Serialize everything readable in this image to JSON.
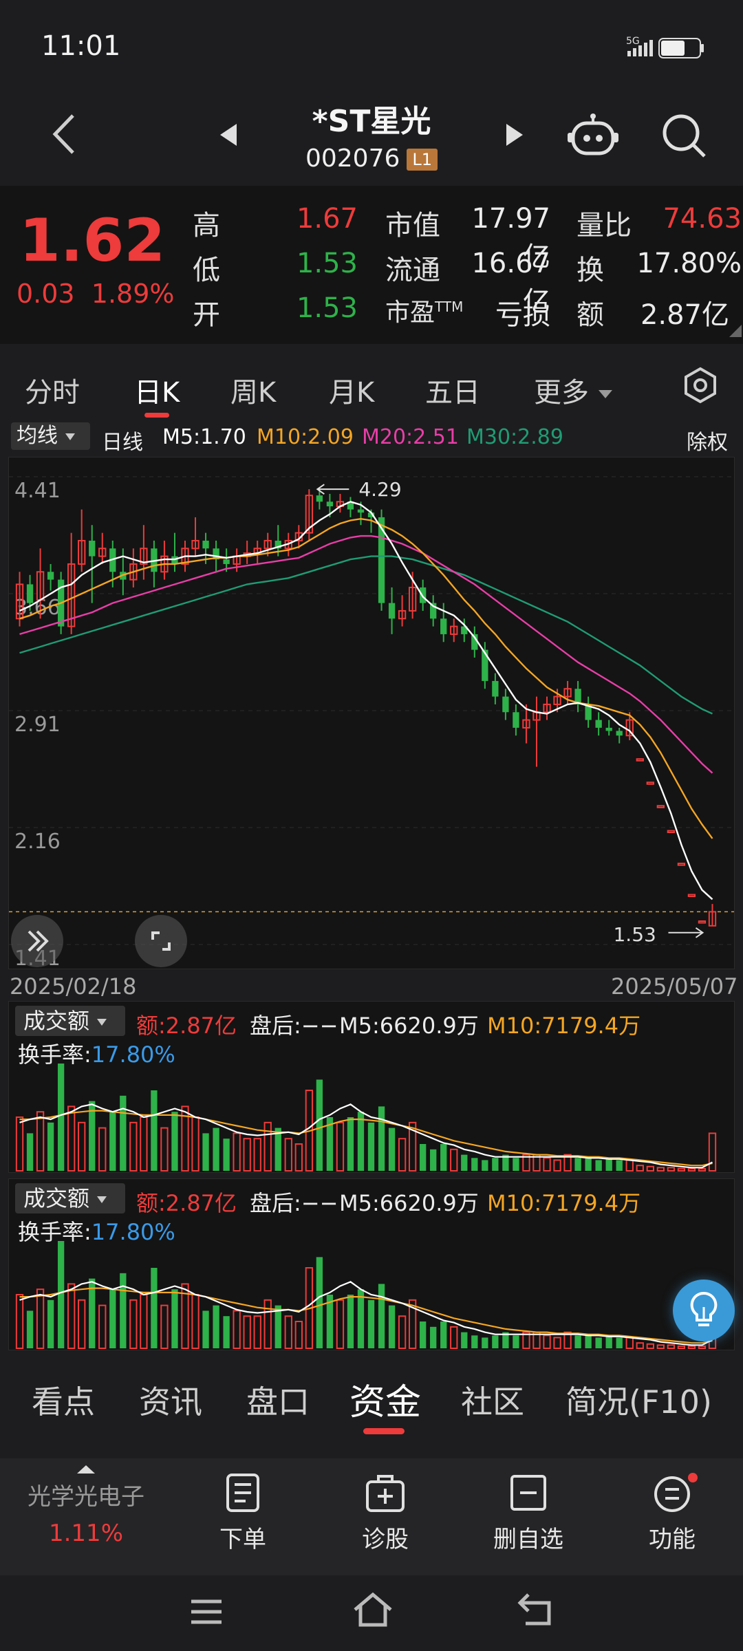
{
  "status": {
    "time": "11:01",
    "network": "5G"
  },
  "header": {
    "stock_name": "*ST星光",
    "stock_code": "002076",
    "level_badge": "L1"
  },
  "quote": {
    "price": "1.62",
    "change": "0.03",
    "change_pct": "1.89%",
    "rows": [
      {
        "label": "高",
        "value": "1.67",
        "color": "#ee3b3b"
      },
      {
        "label": "低",
        "value": "1.53",
        "color": "#2eb24a"
      },
      {
        "label": "开",
        "value": "1.53",
        "color": "#2eb24a"
      }
    ],
    "mid": [
      {
        "label": "市值",
        "value": "17.97亿"
      },
      {
        "label": "流通",
        "value": "16.67亿"
      },
      {
        "label": "市盈TTM",
        "value": "亏损"
      }
    ],
    "right": [
      {
        "label": "量比",
        "value": "74.63",
        "color": "#ee3b3b"
      },
      {
        "label": "换",
        "value": "17.80%",
        "color": "#ececec"
      },
      {
        "label": "额",
        "value": "2.87亿",
        "color": "#ececec"
      }
    ]
  },
  "period_tabs": [
    "分时",
    "日K",
    "周K",
    "月K",
    "五日",
    "更多"
  ],
  "period_active": "日K",
  "ma_legend": {
    "selector": "均线",
    "period": "日线",
    "m5": "M5:1.70",
    "m10": "M10:2.09",
    "m20": "M20:2.51",
    "m30": "M30:2.89",
    "adjust": "除权",
    "colors": {
      "m5": "#ffffff",
      "m10": "#f5a623",
      "m20": "#e83ea7",
      "m30": "#1f9c74"
    }
  },
  "chart_data": {
    "type": "candlestick",
    "y_ticks": [
      "4.41",
      "3.66",
      "2.91",
      "2.16",
      "1.41"
    ],
    "ylim": [
      1.41,
      4.41
    ],
    "high_label": "4.29",
    "low_label": "1.53",
    "start_date": "2025/02/18",
    "end_date": "2025/05/07",
    "candles": [
      [
        3.5,
        3.72,
        3.45,
        3.8
      ],
      [
        3.72,
        3.6,
        3.55,
        3.78
      ],
      [
        3.62,
        3.8,
        3.5,
        3.95
      ],
      [
        3.8,
        3.75,
        3.68,
        3.85
      ],
      [
        3.75,
        3.45,
        3.4,
        3.8
      ],
      [
        3.45,
        3.85,
        3.4,
        4.05
      ],
      [
        3.85,
        4.0,
        3.8,
        4.2
      ],
      [
        4.0,
        3.9,
        3.6,
        4.1
      ],
      [
        3.9,
        3.95,
        3.85,
        4.05
      ],
      [
        3.95,
        3.8,
        3.7,
        4.0
      ],
      [
        3.8,
        3.75,
        3.65,
        3.95
      ],
      [
        3.75,
        3.85,
        3.7,
        3.95
      ],
      [
        3.85,
        3.95,
        3.75,
        4.1
      ],
      [
        3.95,
        3.8,
        3.7,
        4.0
      ],
      [
        3.8,
        3.9,
        3.75,
        4.0
      ],
      [
        3.9,
        3.85,
        3.8,
        4.05
      ],
      [
        3.85,
        3.95,
        3.8,
        4.0
      ],
      [
        3.95,
        4.0,
        3.9,
        4.15
      ],
      [
        4.0,
        3.95,
        3.85,
        4.05
      ],
      [
        3.95,
        3.88,
        3.8,
        4.0
      ],
      [
        3.88,
        3.85,
        3.8,
        3.95
      ],
      [
        3.85,
        3.9,
        3.8,
        3.95
      ],
      [
        3.9,
        3.92,
        3.85,
        4.0
      ],
      [
        3.92,
        3.95,
        3.85,
        4.0
      ],
      [
        3.95,
        4.0,
        3.9,
        4.05
      ],
      [
        4.0,
        3.95,
        3.9,
        4.1
      ],
      [
        3.95,
        4.0,
        3.9,
        4.05
      ],
      [
        4.0,
        4.05,
        3.95,
        4.1
      ],
      [
        4.05,
        4.29,
        4.0,
        4.33
      ],
      [
        4.29,
        4.25,
        4.2,
        4.33
      ],
      [
        4.25,
        4.22,
        4.15,
        4.3
      ],
      [
        4.22,
        4.25,
        4.18,
        4.3
      ],
      [
        4.25,
        4.2,
        4.15,
        4.28
      ],
      [
        4.2,
        4.18,
        4.1,
        4.25
      ],
      [
        4.18,
        4.15,
        4.05,
        4.2
      ],
      [
        4.15,
        3.6,
        3.55,
        4.2
      ],
      [
        3.6,
        3.5,
        3.4,
        3.7
      ],
      [
        3.5,
        3.55,
        3.45,
        3.65
      ],
      [
        3.55,
        3.7,
        3.5,
        3.8
      ],
      [
        3.7,
        3.6,
        3.55,
        3.75
      ],
      [
        3.6,
        3.5,
        3.45,
        3.65
      ],
      [
        3.5,
        3.4,
        3.35,
        3.6
      ],
      [
        3.4,
        3.45,
        3.35,
        3.5
      ],
      [
        3.45,
        3.4,
        3.35,
        3.5
      ],
      [
        3.4,
        3.3,
        3.25,
        3.45
      ],
      [
        3.3,
        3.1,
        3.05,
        3.35
      ],
      [
        3.1,
        3.0,
        2.95,
        3.15
      ],
      [
        3.0,
        2.9,
        2.85,
        3.05
      ],
      [
        2.9,
        2.8,
        2.75,
        2.95
      ],
      [
        2.8,
        2.85,
        2.7,
        2.95
      ],
      [
        2.85,
        2.9,
        2.55,
        3.0
      ],
      [
        2.9,
        2.95,
        2.85,
        3.0
      ],
      [
        2.95,
        3.0,
        2.9,
        3.05
      ],
      [
        3.0,
        3.05,
        2.95,
        3.1
      ],
      [
        3.05,
        2.95,
        2.9,
        3.1
      ],
      [
        2.95,
        2.85,
        2.8,
        3.0
      ],
      [
        2.85,
        2.8,
        2.75,
        2.9
      ],
      [
        2.8,
        2.78,
        2.75,
        2.85
      ],
      [
        2.78,
        2.75,
        2.7,
        2.8
      ],
      [
        2.75,
        2.85,
        2.72,
        2.9
      ],
      [
        2.6,
        2.6,
        2.6,
        2.6
      ],
      [
        2.45,
        2.45,
        2.45,
        2.45
      ],
      [
        2.3,
        2.3,
        2.3,
        2.3
      ],
      [
        2.14,
        2.14,
        2.14,
        2.14
      ],
      [
        1.93,
        1.93,
        1.93,
        1.93
      ],
      [
        1.73,
        1.73,
        1.73,
        1.73
      ],
      [
        1.56,
        1.56,
        1.56,
        1.56
      ],
      [
        1.53,
        1.62,
        1.53,
        1.67
      ]
    ],
    "ma5": [
      3.55,
      3.58,
      3.62,
      3.66,
      3.7,
      3.72,
      3.78,
      3.82,
      3.86,
      3.88,
      3.9,
      3.88,
      3.86,
      3.87,
      3.88,
      3.88,
      3.9,
      3.9,
      3.91,
      3.9,
      3.89,
      3.9,
      3.91,
      3.92,
      3.94,
      3.96,
      3.98,
      4.01,
      4.08,
      4.13,
      4.17,
      4.22,
      4.25,
      4.23,
      4.18,
      4.08,
      3.98,
      3.86,
      3.75,
      3.64,
      3.58,
      3.55,
      3.52,
      3.46,
      3.38,
      3.28,
      3.18,
      3.08,
      2.98,
      2.92,
      2.9,
      2.89,
      2.92,
      2.95,
      2.96,
      2.94,
      2.92,
      2.88,
      2.82,
      2.78,
      2.7,
      2.58,
      2.42,
      2.25,
      2.05,
      1.88,
      1.76,
      1.7
    ],
    "ma10": [
      3.5,
      3.52,
      3.55,
      3.58,
      3.6,
      3.63,
      3.66,
      3.69,
      3.72,
      3.75,
      3.78,
      3.8,
      3.82,
      3.84,
      3.85,
      3.85,
      3.86,
      3.87,
      3.88,
      3.89,
      3.89,
      3.9,
      3.9,
      3.91,
      3.92,
      3.93,
      3.94,
      3.96,
      4.0,
      4.04,
      4.08,
      4.11,
      4.13,
      4.14,
      4.13,
      4.1,
      4.07,
      4.03,
      3.98,
      3.92,
      3.85,
      3.78,
      3.7,
      3.62,
      3.55,
      3.47,
      3.4,
      3.32,
      3.25,
      3.18,
      3.12,
      3.06,
      3.02,
      2.98,
      2.96,
      2.95,
      2.94,
      2.92,
      2.9,
      2.88,
      2.82,
      2.74,
      2.64,
      2.52,
      2.4,
      2.28,
      2.18,
      2.09
    ],
    "ma20": [
      3.4,
      3.42,
      3.44,
      3.46,
      3.48,
      3.5,
      3.52,
      3.54,
      3.57,
      3.6,
      3.62,
      3.64,
      3.66,
      3.68,
      3.7,
      3.72,
      3.74,
      3.76,
      3.78,
      3.8,
      3.82,
      3.83,
      3.84,
      3.85,
      3.86,
      3.87,
      3.88,
      3.89,
      3.92,
      3.95,
      3.98,
      4.0,
      4.02,
      4.03,
      4.03,
      4.02,
      4.0,
      3.98,
      3.95,
      3.92,
      3.88,
      3.84,
      3.8,
      3.76,
      3.72,
      3.67,
      3.62,
      3.57,
      3.52,
      3.47,
      3.42,
      3.37,
      3.32,
      3.27,
      3.22,
      3.18,
      3.14,
      3.1,
      3.06,
      3.02,
      2.97,
      2.91,
      2.85,
      2.78,
      2.71,
      2.64,
      2.57,
      2.51
    ],
    "ma30": [
      3.28,
      3.3,
      3.32,
      3.34,
      3.36,
      3.38,
      3.4,
      3.42,
      3.44,
      3.46,
      3.48,
      3.5,
      3.52,
      3.54,
      3.56,
      3.58,
      3.6,
      3.62,
      3.64,
      3.66,
      3.68,
      3.7,
      3.72,
      3.73,
      3.74,
      3.75,
      3.76,
      3.78,
      3.8,
      3.82,
      3.84,
      3.86,
      3.88,
      3.89,
      3.9,
      3.9,
      3.9,
      3.89,
      3.88,
      3.86,
      3.84,
      3.82,
      3.8,
      3.78,
      3.75,
      3.72,
      3.69,
      3.66,
      3.63,
      3.6,
      3.57,
      3.54,
      3.51,
      3.48,
      3.44,
      3.4,
      3.36,
      3.32,
      3.28,
      3.24,
      3.2,
      3.15,
      3.1,
      3.05,
      3.0,
      2.96,
      2.92,
      2.89
    ],
    "volume_ratio": [
      0.5,
      0.35,
      0.55,
      0.45,
      1.0,
      0.6,
      0.45,
      0.65,
      0.4,
      0.55,
      0.7,
      0.45,
      0.5,
      0.75,
      0.4,
      0.55,
      0.6,
      0.5,
      0.35,
      0.4,
      0.3,
      0.35,
      0.3,
      0.3,
      0.45,
      0.4,
      0.3,
      0.25,
      0.75,
      0.85,
      0.5,
      0.45,
      0.5,
      0.55,
      0.45,
      0.6,
      0.4,
      0.3,
      0.45,
      0.25,
      0.2,
      0.25,
      0.2,
      0.15,
      0.12,
      0.1,
      0.12,
      0.15,
      0.12,
      0.15,
      0.15,
      0.12,
      0.1,
      0.15,
      0.12,
      0.12,
      0.1,
      0.12,
      0.1,
      0.1,
      0.05,
      0.04,
      0.03,
      0.03,
      0.02,
      0.02,
      0.02,
      0.35
    ],
    "vol_ma5": [
      0.45,
      0.48,
      0.5,
      0.48,
      0.52,
      0.55,
      0.6,
      0.62,
      0.58,
      0.55,
      0.58,
      0.55,
      0.5,
      0.52,
      0.55,
      0.58,
      0.55,
      0.5,
      0.48,
      0.44,
      0.4,
      0.36,
      0.34,
      0.33,
      0.34,
      0.35,
      0.36,
      0.34,
      0.4,
      0.48,
      0.52,
      0.58,
      0.62,
      0.55,
      0.5,
      0.48,
      0.45,
      0.42,
      0.38,
      0.34,
      0.3,
      0.26,
      0.24,
      0.2,
      0.18,
      0.15,
      0.13,
      0.13,
      0.13,
      0.13,
      0.13,
      0.13,
      0.13,
      0.13,
      0.13,
      0.12,
      0.12,
      0.11,
      0.11,
      0.1,
      0.09,
      0.08,
      0.06,
      0.05,
      0.04,
      0.03,
      0.03,
      0.08
    ],
    "vol_ma10": [
      0.48,
      0.48,
      0.49,
      0.5,
      0.52,
      0.54,
      0.55,
      0.56,
      0.56,
      0.55,
      0.54,
      0.53,
      0.52,
      0.52,
      0.52,
      0.52,
      0.51,
      0.5,
      0.48,
      0.46,
      0.44,
      0.42,
      0.4,
      0.38,
      0.37,
      0.36,
      0.36,
      0.35,
      0.37,
      0.4,
      0.43,
      0.46,
      0.48,
      0.48,
      0.47,
      0.46,
      0.44,
      0.42,
      0.4,
      0.37,
      0.34,
      0.31,
      0.28,
      0.26,
      0.24,
      0.22,
      0.2,
      0.18,
      0.17,
      0.16,
      0.15,
      0.15,
      0.14,
      0.14,
      0.14,
      0.13,
      0.13,
      0.12,
      0.12,
      0.11,
      0.1,
      0.09,
      0.08,
      0.07,
      0.06,
      0.05,
      0.05,
      0.07
    ]
  },
  "volume_panels": [
    {
      "selector": "成交额",
      "amount": "额:2.87亿",
      "after_hours": "盘后:−−",
      "m5": "M5:6620.9万",
      "m10": "M10:7179.4万",
      "turnover_label": "换手率:",
      "turnover_value": "17.80%"
    },
    {
      "selector": "成交额",
      "amount": "额:2.87亿",
      "after_hours": "盘后:−−",
      "m5": "M5:6620.9万",
      "m10": "M10:7179.4万",
      "turnover_label": "换手率:",
      "turnover_value": "17.80%"
    }
  ],
  "info_tabs": [
    "看点",
    "资讯",
    "盘口",
    "资金",
    "社区",
    "简况(F10)"
  ],
  "info_active": "资金",
  "toolbar": {
    "sector_name": "光学光电子",
    "sector_change": "1.11%",
    "items": [
      "下单",
      "诊股",
      "删自选",
      "功能"
    ]
  }
}
